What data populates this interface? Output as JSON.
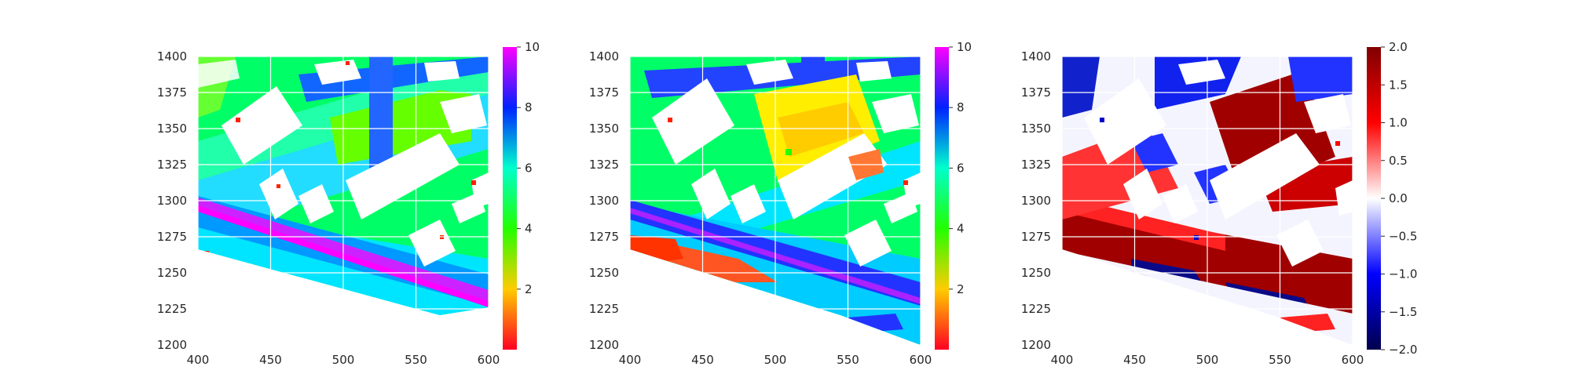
{
  "chart_data": [
    {
      "type": "heatmap",
      "title": "",
      "xlabel": "",
      "ylabel": "",
      "xlim": [
        400,
        600
      ],
      "ylim": [
        1200,
        1400
      ],
      "x_ticks": [
        400,
        450,
        500,
        550,
        600
      ],
      "y_ticks": [
        1200,
        1225,
        1250,
        1275,
        1300,
        1325,
        1350,
        1375,
        1400
      ],
      "grid": true,
      "colormap": "gist_rainbow",
      "colorbar": {
        "vmin": 0,
        "vmax": 10,
        "ticks": [
          2,
          4,
          6,
          8,
          10
        ],
        "colors": [
          "#ff0022",
          "#ffcc00",
          "#22ff00",
          "#00ffcc",
          "#0022ff",
          "#ff00ff"
        ]
      }
    },
    {
      "type": "heatmap",
      "title": "",
      "xlabel": "",
      "ylabel": "",
      "xlim": [
        400,
        600
      ],
      "ylim": [
        1200,
        1400
      ],
      "x_ticks": [
        400,
        450,
        500,
        550,
        600
      ],
      "y_ticks": [
        1200,
        1225,
        1250,
        1275,
        1300,
        1325,
        1350,
        1375,
        1400
      ],
      "grid": true,
      "colormap": "gist_rainbow",
      "colorbar": {
        "vmin": 0,
        "vmax": 10,
        "ticks": [
          2,
          4,
          6,
          8,
          10
        ],
        "colors": [
          "#ff0022",
          "#ffcc00",
          "#22ff00",
          "#00ffcc",
          "#0022ff",
          "#ff00ff"
        ]
      }
    },
    {
      "type": "heatmap",
      "title": "",
      "xlabel": "",
      "ylabel": "",
      "xlim": [
        400,
        600
      ],
      "ylim": [
        1200,
        1400
      ],
      "x_ticks": [
        400,
        450,
        500,
        550,
        600
      ],
      "y_ticks": [
        1200,
        1225,
        1250,
        1275,
        1300,
        1325,
        1350,
        1375,
        1400
      ],
      "grid": true,
      "colormap": "seismic",
      "colorbar": {
        "vmin": -2.0,
        "vmax": 2.0,
        "ticks": [
          -2.0,
          -1.5,
          -1.0,
          -0.5,
          0.0,
          0.5,
          1.0,
          1.5,
          2.0
        ],
        "tick_labels": [
          "−2.0",
          "−1.5",
          "−1.0",
          "−0.5",
          "0.0",
          "0.5",
          "1.0",
          "1.5",
          "2.0"
        ],
        "colors": [
          "#00004d",
          "#0000ff",
          "#ffffff",
          "#ff0000",
          "#800000"
        ]
      }
    }
  ]
}
